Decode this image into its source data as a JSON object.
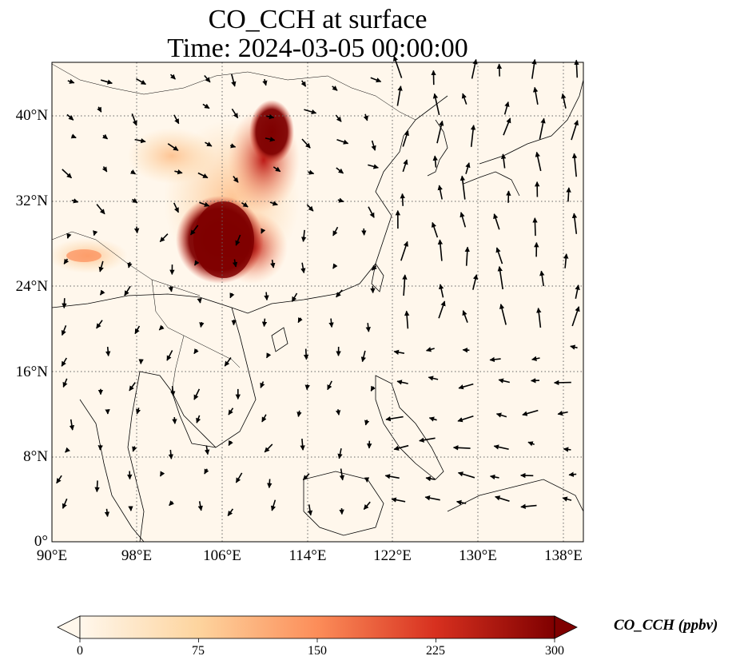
{
  "title": {
    "line1": "CO_CCH at surface",
    "line2": "Time: 2024-03-05 00:00:00"
  },
  "map": {
    "lon_range": [
      90,
      140
    ],
    "lat_range": [
      0,
      45
    ],
    "lat_ticks": [
      "40°N",
      "32°N",
      "24°N",
      "16°N",
      "8°N",
      "0°"
    ],
    "lon_ticks": [
      "90°E",
      "98°E",
      "106°E",
      "114°E",
      "122°E",
      "130°E",
      "138°E"
    ],
    "gridlines": "dotted",
    "field": "CO_CCH",
    "vector_field": "wind"
  },
  "colorbar": {
    "label": "CO_CCH (ppbv)",
    "ticks": [
      "0",
      "75",
      "150",
      "225",
      "300"
    ],
    "range": [
      0,
      300
    ],
    "extend": "both",
    "colormap": [
      "#fff7ec",
      "#fdd49e",
      "#fc8d59",
      "#d7301f",
      "#7f0000"
    ]
  }
}
